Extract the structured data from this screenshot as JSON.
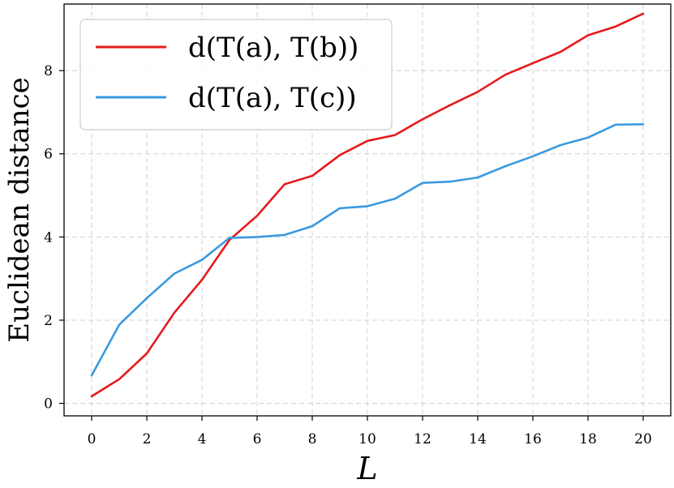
{
  "chart_data": {
    "type": "line",
    "xlabel": "L",
    "ylabel": "Euclidean distance",
    "xlim": [
      -1,
      21
    ],
    "ylim": [
      -0.3,
      9.6
    ],
    "xticks": [
      0,
      2,
      4,
      6,
      8,
      10,
      12,
      14,
      16,
      18,
      20
    ],
    "yticks": [
      0,
      2,
      4,
      6,
      8
    ],
    "grid": true,
    "legend_position": "top-left",
    "x": [
      0,
      1,
      2,
      3,
      4,
      5,
      6,
      7,
      8,
      9,
      10,
      11,
      12,
      13,
      14,
      15,
      16,
      17,
      18,
      19,
      20
    ],
    "series": [
      {
        "name": "d(T(a), T(b))",
        "color": "#e41a1c",
        "values": [
          0.17,
          0.58,
          1.2,
          2.18,
          2.97,
          3.93,
          4.51,
          5.27,
          5.47,
          5.97,
          6.31,
          6.45,
          6.83,
          7.17,
          7.49,
          7.9,
          8.18,
          8.45,
          8.85,
          9.06,
          9.37
        ]
      },
      {
        "name": "d(T(a), T(c))",
        "color": "#3a9ae0",
        "values": [
          0.67,
          1.89,
          2.53,
          3.12,
          3.45,
          3.98,
          4.0,
          4.05,
          4.26,
          4.69,
          4.74,
          4.92,
          5.3,
          5.33,
          5.43,
          5.7,
          5.94,
          6.21,
          6.39,
          6.7,
          6.71
        ]
      }
    ]
  }
}
